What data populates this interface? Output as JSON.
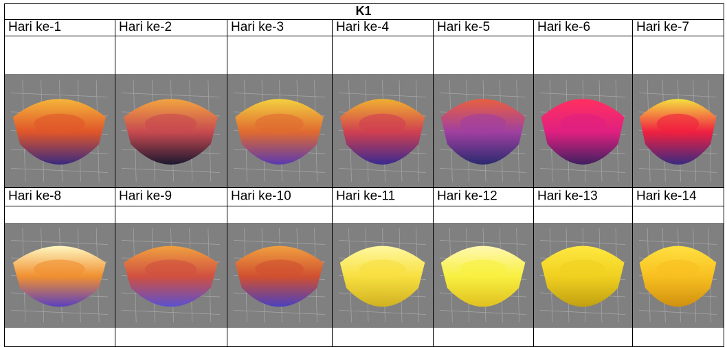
{
  "table": {
    "title": "K1",
    "rows": [
      [
        "Hari ke-1",
        "Hari ke-2",
        "Hari ke-3",
        "Hari ke-4",
        "Hari ke-5",
        "Hari ke-6",
        "Hari ke-7"
      ],
      [
        "Hari ke-8",
        "Hari ke-9",
        "Hari ke-10",
        "Hari ke-11",
        "Hari ke-12",
        "Hari ke-13",
        "Hari ke-14"
      ]
    ]
  }
}
